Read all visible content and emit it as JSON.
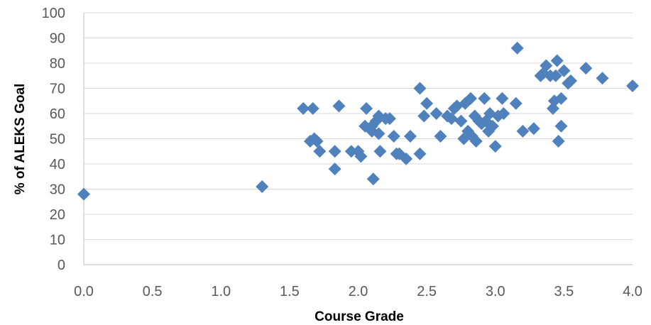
{
  "chart_data": {
    "type": "scatter",
    "xlabel": "Course Grade",
    "ylabel": "% of ALEKS Goal",
    "xlim": [
      0,
      4
    ],
    "ylim": [
      0,
      100
    ],
    "x_ticks": [
      "0.0",
      "0.5",
      "1.0",
      "1.5",
      "2.0",
      "2.5",
      "3.0",
      "3.5",
      "4.0"
    ],
    "y_ticks": [
      "0",
      "10",
      "20",
      "30",
      "40",
      "50",
      "60",
      "70",
      "80",
      "90",
      "100"
    ],
    "grid": "horizontal",
    "marker": "diamond",
    "marker_color": "#4f81bd",
    "series": [
      {
        "x": [
          0.0,
          1.3,
          1.6,
          1.67,
          1.65,
          1.68,
          1.7,
          1.72,
          1.83,
          1.83,
          1.86,
          1.95,
          2.0,
          2.02,
          2.05,
          2.06,
          2.1,
          2.1,
          2.11,
          2.13,
          2.15,
          2.15,
          2.16,
          2.2,
          2.23,
          2.26,
          2.28,
          2.3,
          2.35,
          2.38,
          2.45,
          2.45,
          2.48,
          2.5,
          2.57,
          2.6,
          2.65,
          2.68,
          2.7,
          2.72,
          2.75,
          2.77,
          2.78,
          2.8,
          2.82,
          2.83,
          2.85,
          2.86,
          2.88,
          2.9,
          2.92,
          2.93,
          2.95,
          2.96,
          2.98,
          3.0,
          3.02,
          3.05,
          3.06,
          3.15,
          3.16,
          3.2,
          3.28,
          3.33,
          3.35,
          3.37,
          3.4,
          3.42,
          3.43,
          3.44,
          3.45,
          3.46,
          3.48,
          3.48,
          3.5,
          3.53,
          3.55,
          3.66,
          3.78,
          4.0
        ],
        "y": [
          28,
          31,
          62,
          62,
          49,
          50,
          49,
          45,
          45,
          38,
          63,
          45,
          45,
          43,
          55,
          62,
          55,
          53,
          34,
          57,
          59,
          52,
          45,
          58,
          58,
          51,
          44,
          44,
          42,
          51,
          70,
          44,
          59,
          64,
          60,
          51,
          59,
          58,
          62,
          63,
          57,
          50,
          64,
          53,
          66,
          51,
          59,
          49,
          57,
          56,
          66,
          57,
          53,
          60,
          55,
          47,
          59,
          66,
          60,
          64,
          86,
          53,
          54,
          75,
          76,
          79,
          75,
          62,
          65,
          75,
          81,
          49,
          55,
          66,
          77,
          72,
          73,
          78,
          74,
          71
        ]
      }
    ]
  }
}
